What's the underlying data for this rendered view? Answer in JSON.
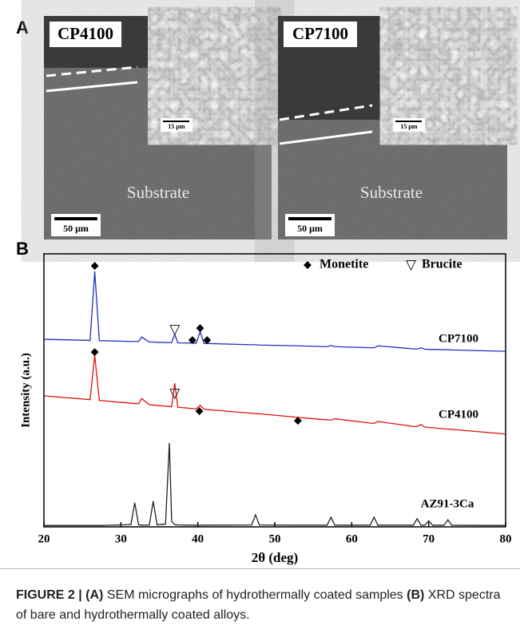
{
  "panel_a": {
    "label": "A",
    "images": [
      {
        "title": "CP4100",
        "inset_scale": "15 μm",
        "scale": "50 μm",
        "region": "Substrate"
      },
      {
        "title": "CP7100",
        "inset_scale": "15 μm",
        "scale": "50 μm",
        "region": "Substrate"
      }
    ]
  },
  "chart_data": {
    "type": "line",
    "panel_label": "B",
    "x_label": "2θ (deg)",
    "y_label": "Intensity (a.u.)",
    "xlim": [
      20,
      80
    ],
    "xticks": [
      20,
      30,
      40,
      50,
      60,
      70,
      80
    ],
    "ylim": [
      0,
      100
    ],
    "x": [
      20,
      26,
      26.6,
      27.2,
      31.3,
      31.8,
      32.3,
      32.7,
      33.7,
      34.2,
      34.7,
      35.8,
      36.3,
      36.6,
      37,
      37.4,
      39.8,
      40.3,
      40.8,
      47,
      47.5,
      48,
      53,
      56.8,
      57.3,
      57.8,
      62.4,
      62.9,
      63.4,
      68,
      68.5,
      69,
      69.5,
      70,
      70.5,
      72,
      72.5,
      73,
      80
    ],
    "series": [
      {
        "name": "CP7100",
        "color": "#1f2fbf",
        "values": [
          68.7,
          68.3,
          93.6,
          68.2,
          67.9,
          67.9,
          67.9,
          69.5,
          67.7,
          67.7,
          67.6,
          67.5,
          67.5,
          67.5,
          70.5,
          67.4,
          67.3,
          71.5,
          67.2,
          66.7,
          66.7,
          66.6,
          66.3,
          66,
          66.4,
          66,
          65.6,
          65.6,
          66.3,
          65.2,
          65.1,
          65.6,
          65.1,
          65,
          65,
          64.9,
          64.9,
          64.8,
          64.3
        ]
      },
      {
        "name": "CP4100",
        "color": "#e01010",
        "values": [
          48,
          46.6,
          62.9,
          46.3,
          45.3,
          45.2,
          45.1,
          47,
          44.7,
          44.6,
          44.5,
          44.2,
          44.1,
          44,
          52.6,
          43.8,
          43.2,
          44.5,
          43.1,
          41.6,
          41.5,
          41.4,
          40.1,
          39.2,
          39.1,
          39.6,
          38,
          37.9,
          38.6,
          36.8,
          36.7,
          37.5,
          36.5,
          36.4,
          36.3,
          35.9,
          35.8,
          35.7,
          34
        ]
      },
      {
        "name": "AZ91-3Ca",
        "color": "#222222",
        "values": [
          0.5,
          0.5,
          0.5,
          0.5,
          0.8,
          8.8,
          0.8,
          0.6,
          0.7,
          9.4,
          0.8,
          1,
          30.7,
          2,
          0.8,
          0.7,
          0.6,
          0.6,
          0.6,
          0.7,
          4.4,
          0.7,
          0.6,
          0.6,
          3.5,
          0.6,
          0.6,
          3.5,
          0.6,
          0.6,
          3,
          0.6,
          0.6,
          2.2,
          0.6,
          0.6,
          2.6,
          0.6,
          0.5
        ]
      }
    ],
    "legend": [
      {
        "symbol": "◆",
        "label": "Monetite"
      },
      {
        "symbol": "▽",
        "label": "Brucite"
      }
    ],
    "markers": [
      {
        "symbol": "◆",
        "x": 26.6,
        "y": 95.6
      },
      {
        "symbol": "▽",
        "x": 37,
        "y": 72.2
      },
      {
        "symbol": "◆",
        "x": 39.3,
        "y": 68.4
      },
      {
        "symbol": "◆",
        "x": 40.3,
        "y": 72.8
      },
      {
        "symbol": "◆",
        "x": 41.2,
        "y": 68.4
      },
      {
        "symbol": "◆",
        "x": 26.6,
        "y": 64
      },
      {
        "symbol": "▽",
        "x": 37,
        "y": 48.8
      },
      {
        "symbol": "◆",
        "x": 40.2,
        "y": 42.4
      },
      {
        "symbol": "◆",
        "x": 53,
        "y": 38.9
      }
    ]
  },
  "caption": {
    "figure": "FIGURE 2 |",
    "a": "(A)",
    "a_text": "SEM micrographs of hydrothermally coated samples",
    "b": "(B)",
    "b_text": "XRD spectra of bare and hydrothermally coated alloys."
  }
}
